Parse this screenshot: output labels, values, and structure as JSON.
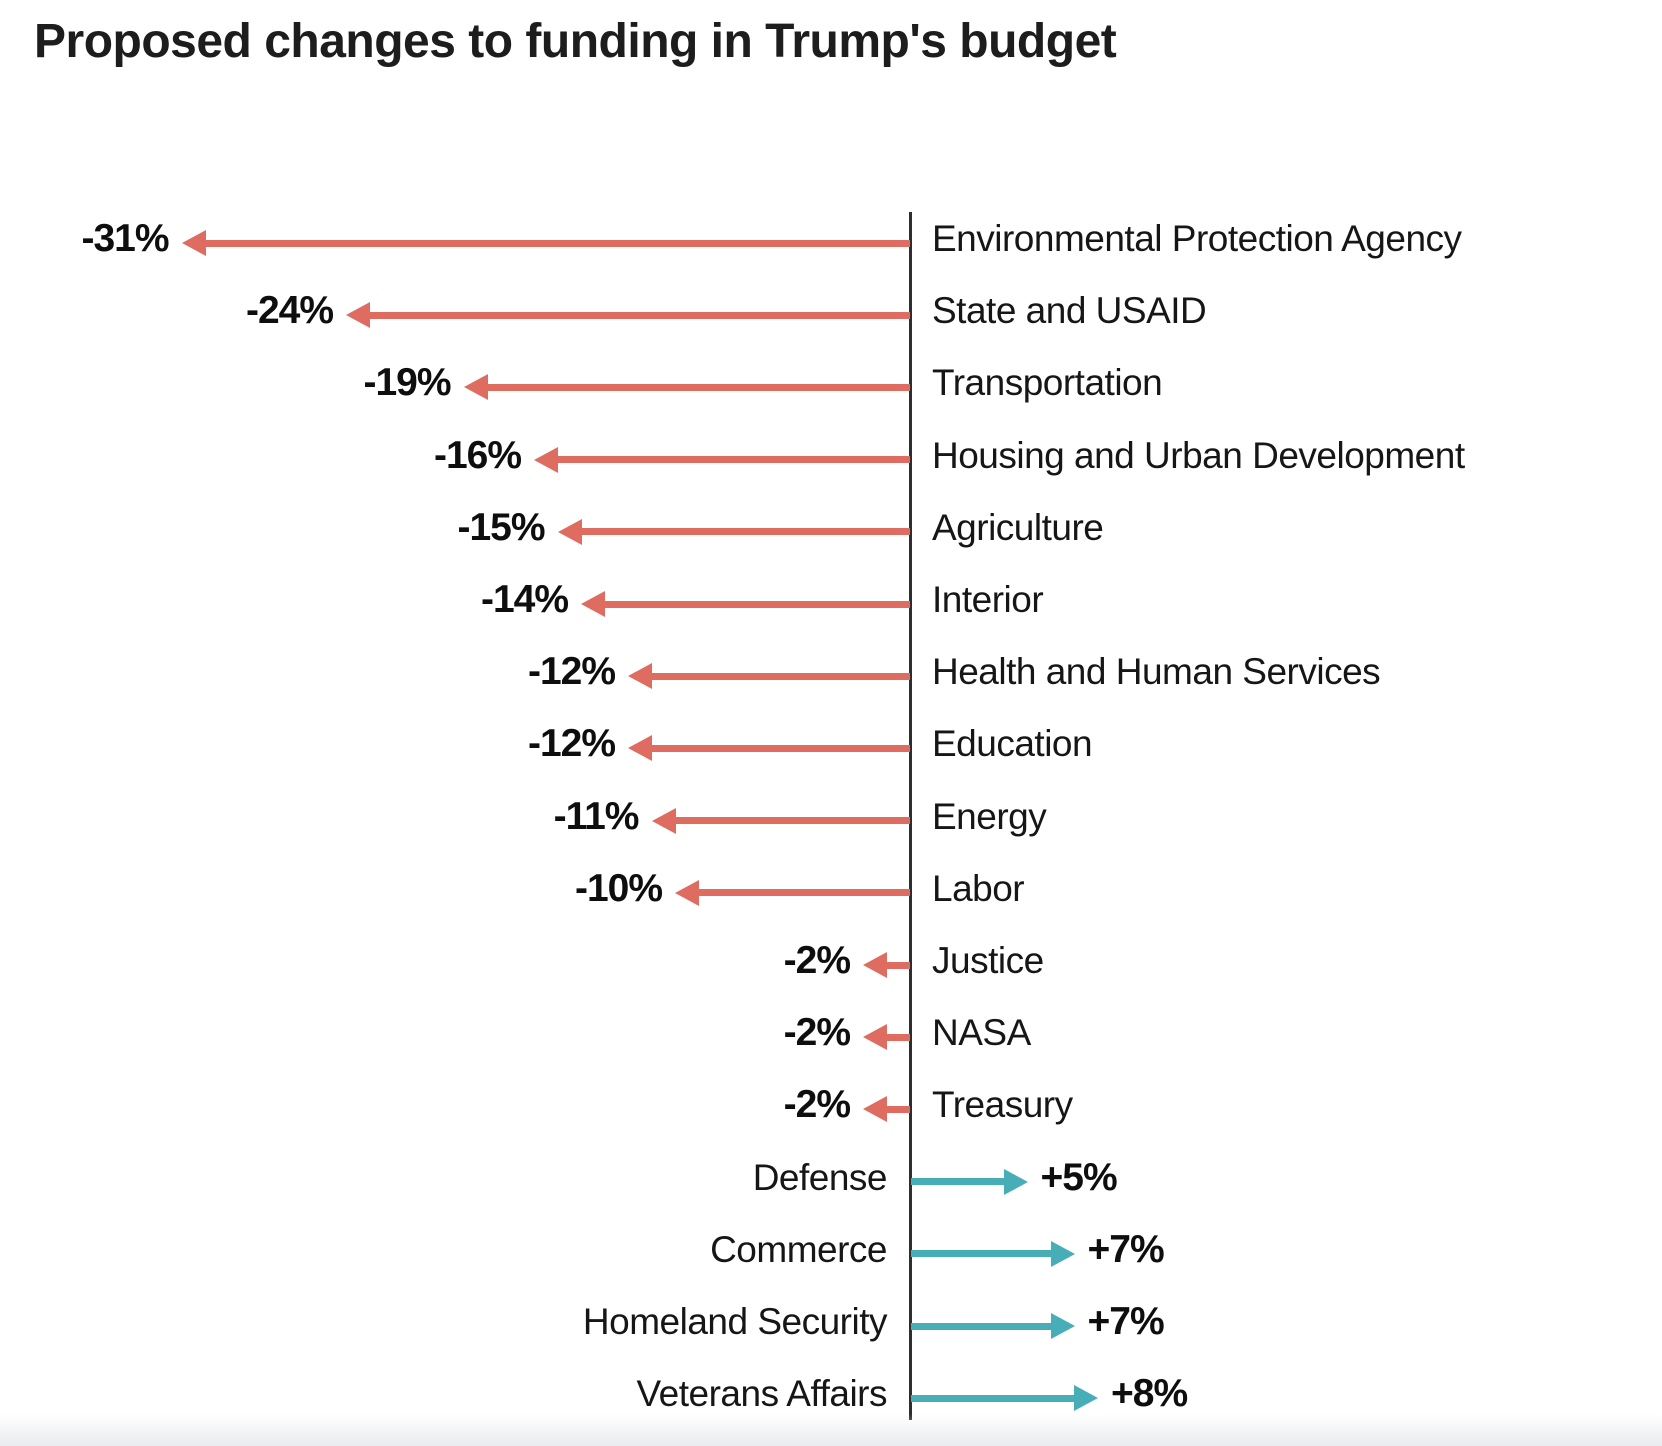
{
  "page": {
    "title": "Proposed changes to funding in Trump's budget"
  },
  "colors": {
    "decrease": "#df6c61",
    "increase": "#47aeb8",
    "axis": "#2e2e2e",
    "title_text": "#1d1d1d",
    "value_text": "#0e0e0e",
    "label_text": "#161616"
  },
  "chart_data": {
    "type": "bar",
    "subtype": "diverging-horizontal-arrows",
    "title": "Proposed changes to funding in Trump's budget",
    "unit": "percent change from baseline",
    "baseline": 0,
    "axis_range_percent": [
      -32,
      9
    ],
    "grid": false,
    "legend_position": "none",
    "negative_color": "#df6c61",
    "positive_color": "#47aeb8",
    "categories": [
      "Environmental Protection Agency",
      "State and USAID",
      "Transportation",
      "Housing and Urban Development",
      "Agriculture",
      "Interior",
      "Health and Human Services",
      "Education",
      "Energy",
      "Labor",
      "Justice",
      "NASA",
      "Treasury",
      "Defense",
      "Commerce",
      "Homeland Security",
      "Veterans Affairs"
    ],
    "values": [
      -31,
      -24,
      -19,
      -16,
      -15,
      -14,
      -12,
      -12,
      -11,
      -10,
      -2,
      -2,
      -2,
      5,
      7,
      7,
      8
    ],
    "value_labels": [
      "-31%",
      "-24%",
      "-19%",
      "-16%",
      "-15%",
      "-14%",
      "-12%",
      "-12%",
      "-11%",
      "-10%",
      "-2%",
      "-2%",
      "-2%",
      "+5%",
      "+7%",
      "+7%",
      "+8%"
    ]
  }
}
